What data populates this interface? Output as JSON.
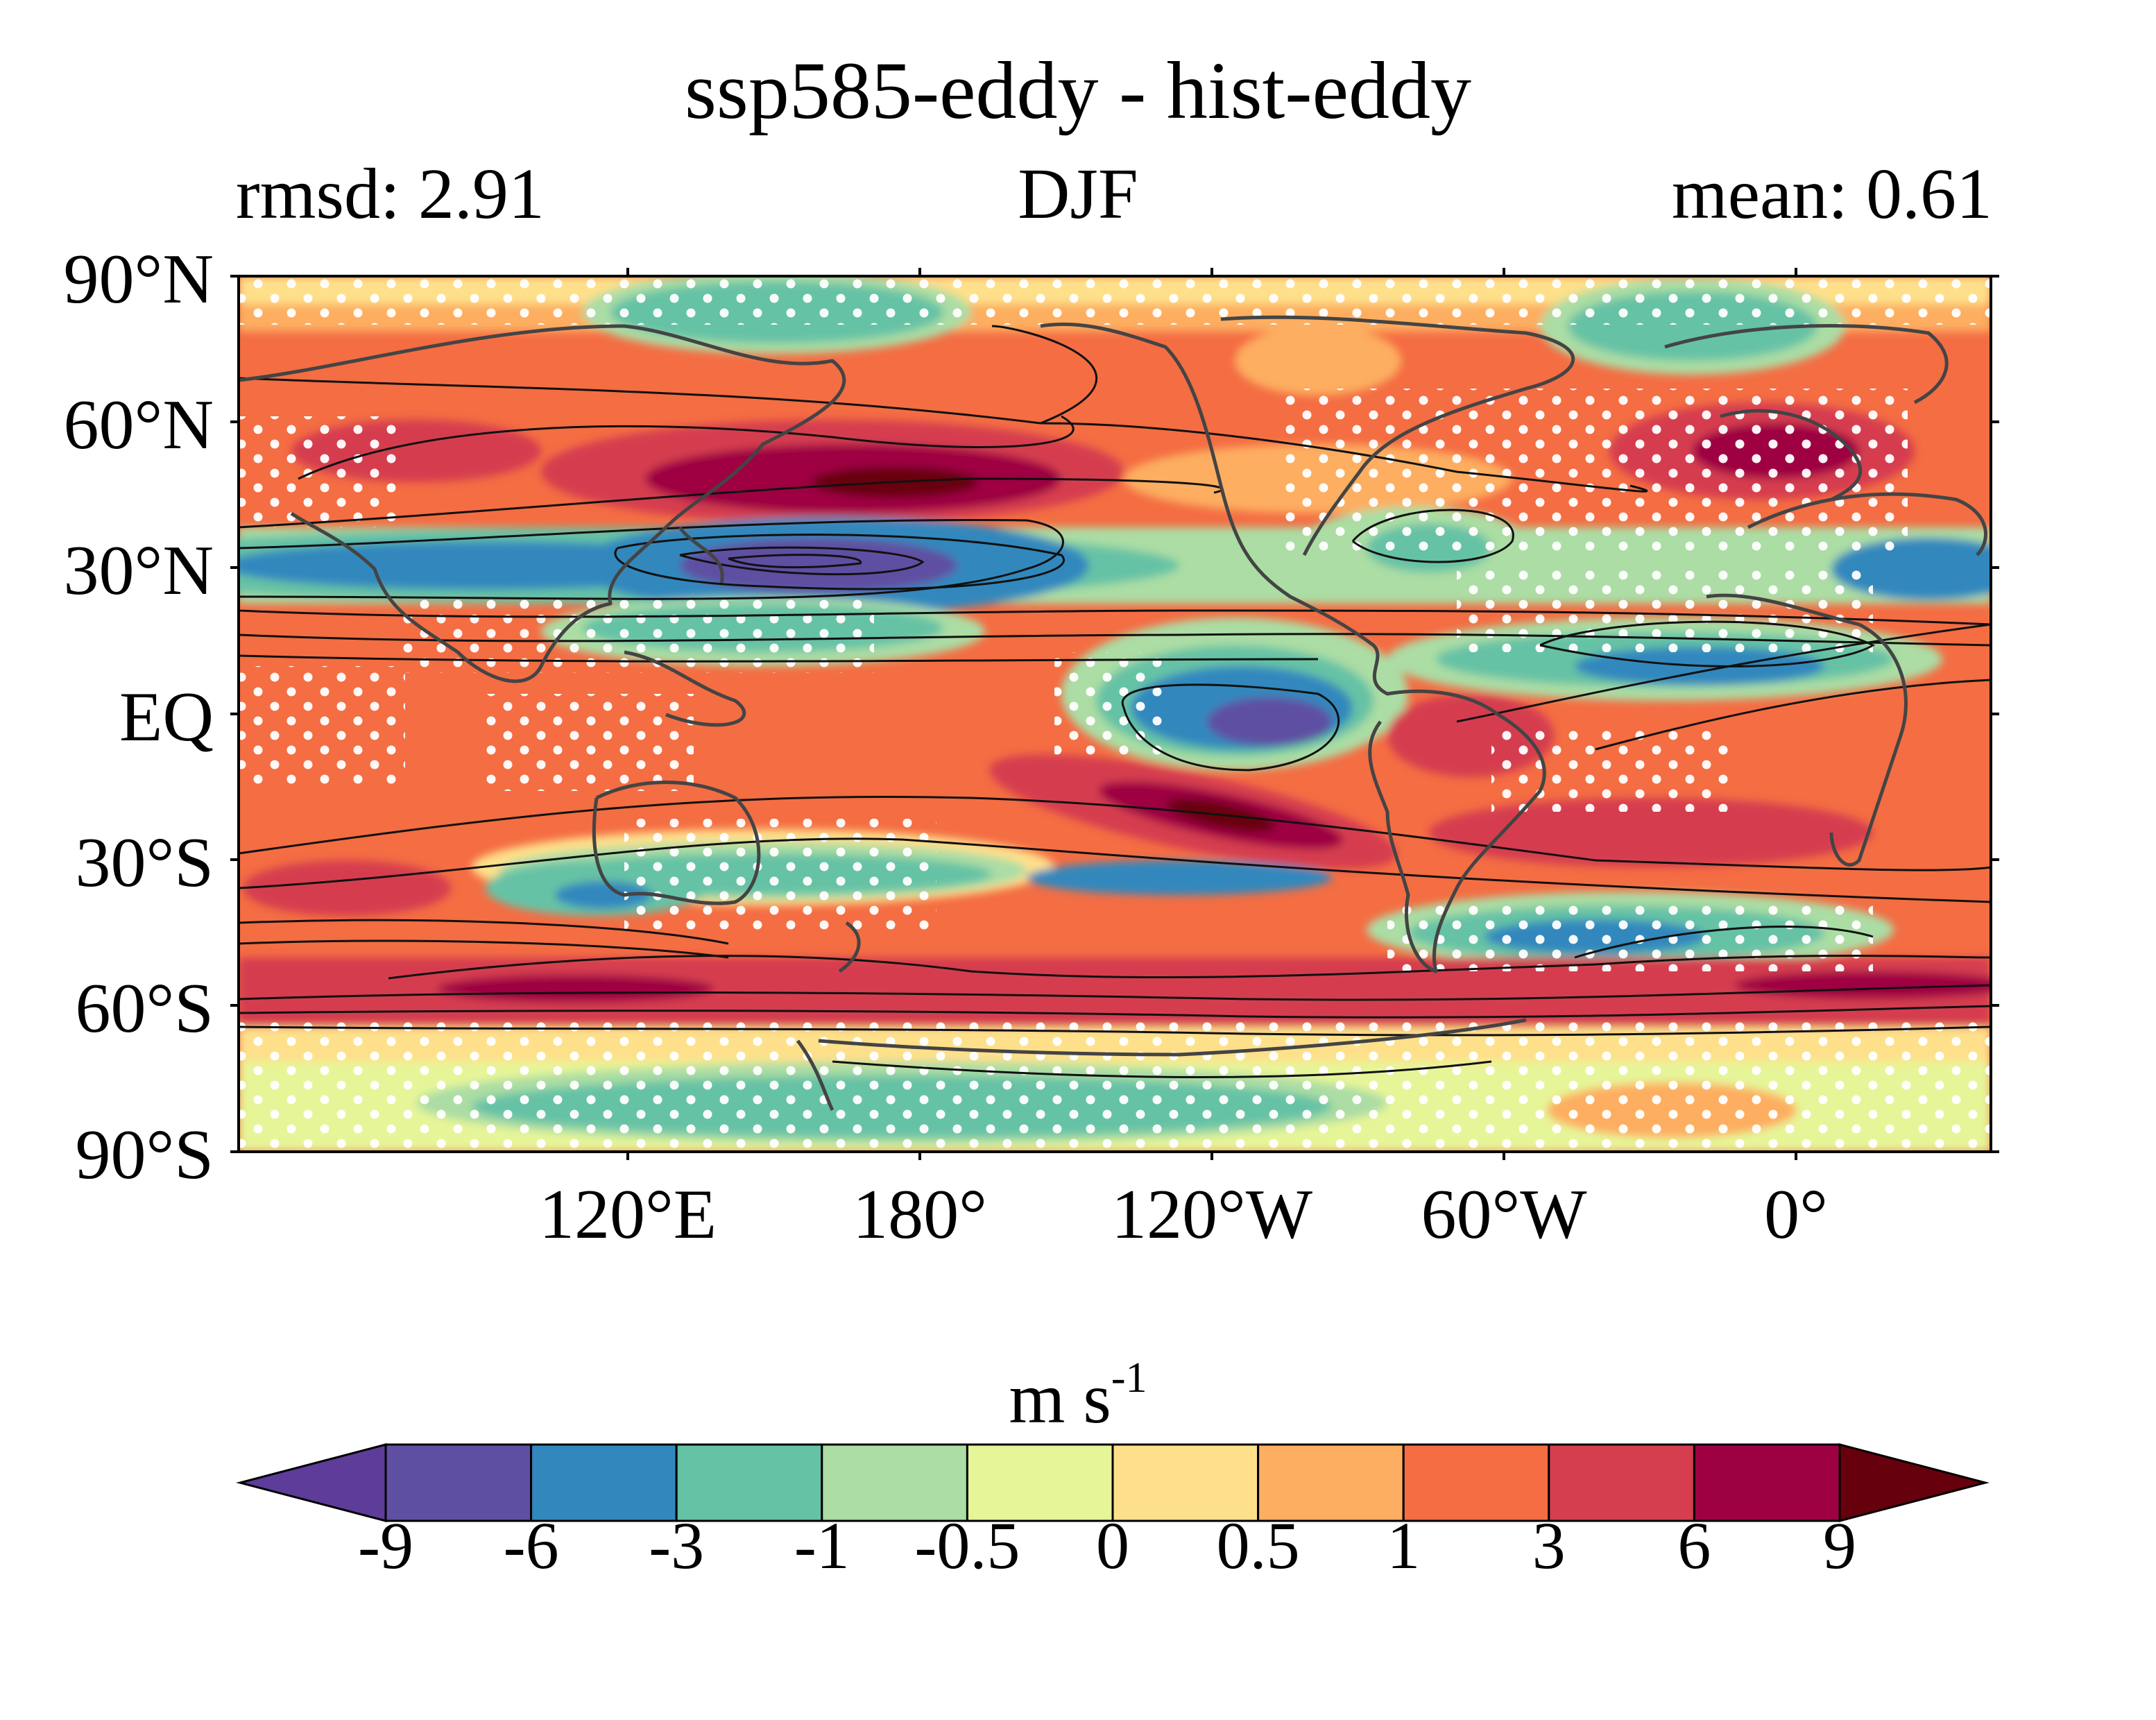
{
  "title": "ssp585-eddy - hist-eddy",
  "left_label": "rmsd: 2.91",
  "center_label": "DJF",
  "right_label": "mean: 0.61",
  "lat_ticks": [
    "90°N",
    "60°N",
    "30°N",
    "EQ",
    "30°S",
    "60°S",
    "90°S"
  ],
  "lon_ticks": [
    "120°E",
    "180°",
    "120°W",
    "60°W",
    "0°"
  ],
  "colorbar": {
    "label": "m s",
    "label_exponent": "-1",
    "ticks": [
      "-9",
      "-6",
      "-3",
      "-1",
      "-0.5",
      "0",
      "0.5",
      "1",
      "3",
      "6",
      "9"
    ],
    "colors": [
      "#5e3c99",
      "#5e4fa2",
      "#3288bd",
      "#66c2a5",
      "#abdda4",
      "#e6f598",
      "#fee08b",
      "#fdae61",
      "#f46d43",
      "#d53e4f",
      "#9e0142",
      "#67000d"
    ],
    "extend": "both"
  },
  "map": {
    "projection": "PlateCarree",
    "central_longitude": 0,
    "lon_range": [
      0,
      360
    ],
    "lat_range": [
      -90,
      90
    ],
    "stippling": "white dots mark significance",
    "contours": "black climatological contours overlaid",
    "coastline_color": "#444444"
  }
}
